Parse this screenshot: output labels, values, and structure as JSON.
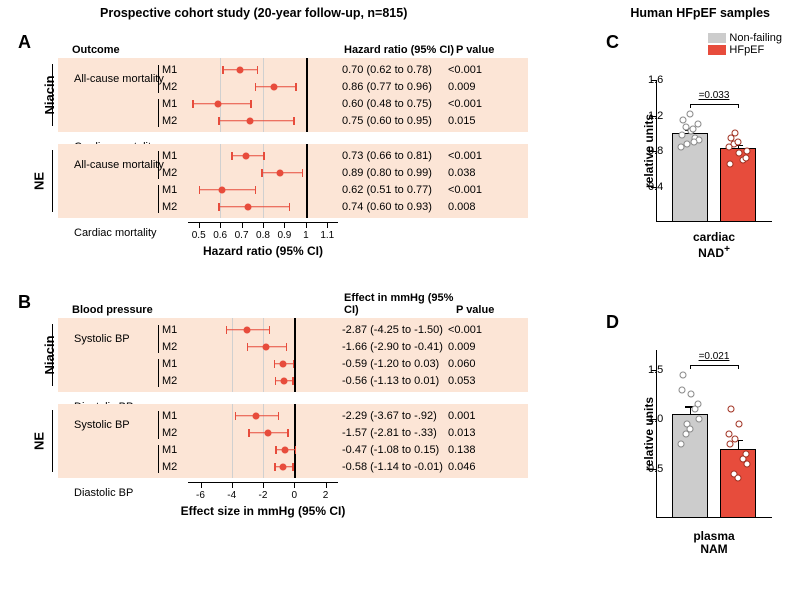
{
  "titles": {
    "left": "Prospective cohort study (20-year follow-up, n=815)",
    "right": "Human HFpEF samples"
  },
  "panelA": {
    "label": "A",
    "header": {
      "outcome": "Outcome",
      "hr": "Hazard ratio (95% CI)",
      "p": "P value"
    },
    "x": {
      "label": "Hazard ratio (95% CI)",
      "min": 0.45,
      "max": 1.15,
      "ticks": [
        0.5,
        0.6,
        0.7,
        0.8,
        0.9,
        1.0,
        1.1
      ],
      "grid": [
        0.6,
        0.8
      ],
      "ref": 1.0
    },
    "groups": [
      {
        "name": "Niacin",
        "rows": [
          {
            "outcome": "All-cause mortality",
            "model": "M1",
            "pt": 0.7,
            "lo": 0.62,
            "hi": 0.78,
            "txt": "0.70 (0.62 to 0.78)",
            "p": "<0.001"
          },
          {
            "outcome": "",
            "model": "M2",
            "pt": 0.86,
            "lo": 0.77,
            "hi": 0.96,
            "txt": "0.86 (0.77 to 0.96)",
            "p": "0.009"
          },
          {
            "outcome": "Cardiac mortality",
            "model": "M1",
            "pt": 0.6,
            "lo": 0.48,
            "hi": 0.75,
            "txt": "0.60 (0.48 to 0.75)",
            "p": "<0.001"
          },
          {
            "outcome": "",
            "model": "M2",
            "pt": 0.75,
            "lo": 0.6,
            "hi": 0.95,
            "txt": "0.75 (0.60 to 0.95)",
            "p": "0.015"
          }
        ]
      },
      {
        "name": "NE",
        "rows": [
          {
            "outcome": "All-cause mortality",
            "model": "M1",
            "pt": 0.73,
            "lo": 0.66,
            "hi": 0.81,
            "txt": "0.73 (0.66 to 0.81)",
            "p": "<0.001"
          },
          {
            "outcome": "",
            "model": "M2",
            "pt": 0.89,
            "lo": 0.8,
            "hi": 0.99,
            "txt": "0.89 (0.80 to 0.99)",
            "p": "0.038"
          },
          {
            "outcome": "Cardiac mortality",
            "model": "M1",
            "pt": 0.62,
            "lo": 0.51,
            "hi": 0.77,
            "txt": "0.62 (0.51 to 0.77)",
            "p": "<0.001"
          },
          {
            "outcome": "",
            "model": "M2",
            "pt": 0.74,
            "lo": 0.6,
            "hi": 0.93,
            "txt": "0.74 (0.60 to 0.93)",
            "p": "0.008"
          }
        ]
      }
    ]
  },
  "panelB": {
    "label": "B",
    "header": {
      "outcome": "Blood pressure",
      "hr": "Effect in mmHg (95% CI)",
      "p": "P value"
    },
    "x": {
      "label": "Effect size in mmHg (95% CI)",
      "min": -6.8,
      "max": 2.8,
      "ticks": [
        -6,
        -4,
        -2,
        0,
        2
      ],
      "grid": [
        -4,
        -2
      ],
      "ref": 0
    },
    "groups": [
      {
        "name": "Niacin",
        "rows": [
          {
            "outcome": "Systolic BP",
            "model": "M1",
            "pt": -2.87,
            "lo": -4.25,
            "hi": -1.5,
            "txt": "-2.87 (-4.25 to -1.50)",
            "p": "<0.001"
          },
          {
            "outcome": "",
            "model": "M2",
            "pt": -1.66,
            "lo": -2.9,
            "hi": -0.41,
            "txt": "-1.66 (-2.90 to -0.41)",
            "p": "0.009"
          },
          {
            "outcome": "Diastolic BP",
            "model": "M1",
            "pt": -0.59,
            "lo": -1.2,
            "hi": 0.03,
            "txt": "-0.59 (-1.20 to 0.03)",
            "p": "0.060"
          },
          {
            "outcome": "",
            "model": "M2",
            "pt": -0.56,
            "lo": -1.13,
            "hi": 0.01,
            "txt": "-0.56 (-1.13 to 0.01)",
            "p": "0.053"
          }
        ]
      },
      {
        "name": "NE",
        "rows": [
          {
            "outcome": "Systolic BP",
            "model": "M1",
            "pt": -2.29,
            "lo": -3.67,
            "hi": -0.92,
            "txt": "-2.29 (-3.67 to -.92)",
            "p": "0.001"
          },
          {
            "outcome": "",
            "model": "M2",
            "pt": -1.57,
            "lo": -2.81,
            "hi": -0.33,
            "txt": "-1.57 (-2.81 to -.33)",
            "p": "0.013"
          },
          {
            "outcome": "Diastolic BP",
            "model": "M1",
            "pt": -0.47,
            "lo": -1.08,
            "hi": 0.15,
            "txt": "-0.47 (-1.08 to 0.15)",
            "p": "0.138"
          },
          {
            "outcome": "",
            "model": "M2",
            "pt": -0.58,
            "lo": -1.14,
            "hi": -0.01,
            "txt": "-0.58 (-1.14 to -0.01)",
            "p": "0.046"
          }
        ]
      }
    ]
  },
  "panelC": {
    "label": "C",
    "legend": [
      {
        "label": "Non-failing",
        "color": "#cccccc",
        "border": "#888888"
      },
      {
        "label": "HFpEF",
        "color": "#e74c3c",
        "border": "#a03020"
      }
    ],
    "y": {
      "label": "relative units",
      "min": 0,
      "max": 1.6,
      "ticks": [
        0.4,
        0.8,
        1.2,
        1.6
      ]
    },
    "x_label": "cardiac\nNAD⁺",
    "sig": "0.033",
    "bars": [
      {
        "mean": 1.0,
        "sem": 0.04,
        "color": "#cccccc",
        "border": "#888888",
        "dots": [
          1.15,
          1.02,
          0.95,
          1.07,
          0.88,
          0.92,
          0.98,
          1.22,
          1.1,
          0.85,
          1.05,
          0.9
        ]
      },
      {
        "mean": 0.83,
        "sem": 0.04,
        "color": "#e74c3c",
        "border": "#a03020",
        "dots": [
          0.95,
          0.78,
          0.7,
          0.88,
          1.0,
          0.8,
          0.65,
          0.9,
          0.72,
          0.85
        ]
      }
    ]
  },
  "panelD": {
    "label": "D",
    "y": {
      "label": "relative units",
      "min": 0,
      "max": 1.7,
      "ticks": [
        0.5,
        1.0,
        1.5
      ]
    },
    "x_label": "plasma\nNAM",
    "sig": "0.021",
    "bars": [
      {
        "mean": 1.05,
        "sem": 0.08,
        "color": "#cccccc",
        "border": "#888888",
        "dots": [
          1.45,
          1.25,
          1.1,
          0.85,
          0.95,
          1.0,
          1.3,
          0.9,
          1.15,
          0.75
        ]
      },
      {
        "mean": 0.7,
        "sem": 0.09,
        "color": "#e74c3c",
        "border": "#a03020",
        "dots": [
          1.1,
          0.95,
          0.6,
          0.45,
          0.8,
          0.55,
          0.75,
          0.4,
          0.65,
          0.85
        ]
      }
    ]
  },
  "colors": {
    "accent": "#e74c3c",
    "block": "#fce5d6"
  }
}
